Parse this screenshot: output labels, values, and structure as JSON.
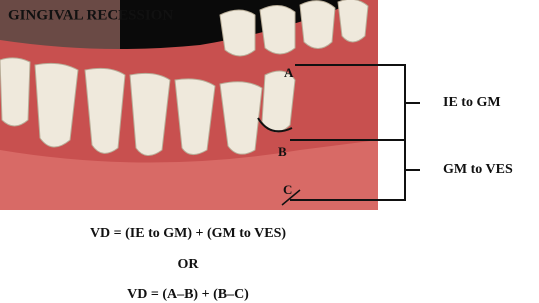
{
  "header": {
    "title": "GINGIVAL RECESSION"
  },
  "points": [
    "A",
    "B",
    "C"
  ],
  "measures": [
    "IE to GM",
    "GM to VES"
  ],
  "formula": {
    "line1": "VD = (IE to GM) + (GM to VES)",
    "or": "OR",
    "line2": "VD = (A–B) + (B–C)"
  }
}
